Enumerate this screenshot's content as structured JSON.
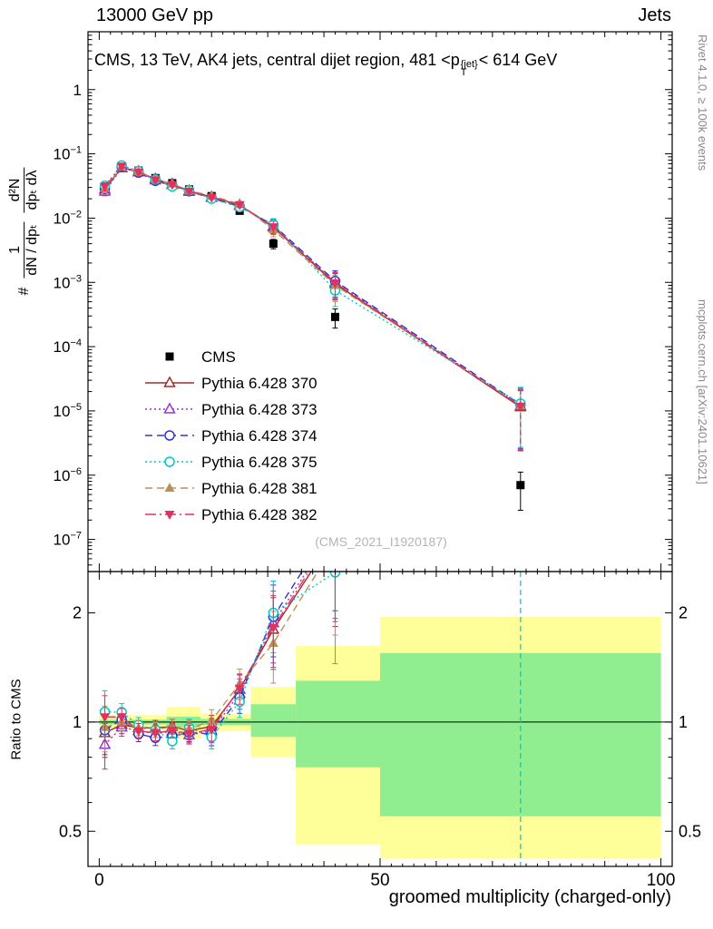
{
  "header": {
    "left": "13000 GeV pp",
    "right": "Jets"
  },
  "plot": {
    "title_prefix": "CMS, 13 TeV, AK4 jets, central dijet region, 481 <p",
    "title_sup": "{jet}",
    "title_sub": "T",
    "title_suffix": "< 614 GeV",
    "watermark": "(CMS_2021_I1920187)",
    "ylabel": {
      "prefix": "#",
      "frac1_num": "1",
      "frac1_den": "dN / dpₜ",
      "frac2_num": "d²N",
      "frac2_den": "dpₜ dλ"
    }
  },
  "side_texts": {
    "right_top": "Rivet 4.1.0, ≥ 100k events",
    "right_bottom": "mcplots.cern.ch [arXiv:2401.10621]"
  },
  "ratio": {
    "ylabel": "Ratio to CMS",
    "major_ticks": [
      0.5,
      1,
      2
    ]
  },
  "xaxis": {
    "title": "groomed multiplicity (charged-only)",
    "major_ticks": [
      0,
      50,
      100
    ]
  },
  "yaxis": {
    "tick_exponents": [
      0,
      -1,
      -2,
      -3,
      -4,
      -5,
      -6,
      -7
    ]
  },
  "chart_data": {
    "type": "line",
    "title": "CMS, 13 TeV, AK4 jets, central dijet region, 481 < pT{jet} < 614 GeV",
    "xlabel": "groomed multiplicity (charged-only)",
    "ylabel": "# 1/(dN/dpT) d²N/(dpT dλ)",
    "ratio_label": "Ratio to CMS",
    "legend_position": "inside-left",
    "grid": false,
    "xlim": [
      -2,
      102
    ],
    "ylim_log10": [
      -7.5,
      0.9
    ],
    "ratio_ylim": [
      0.4,
      2.6
    ],
    "x": [
      1,
      4,
      7,
      10,
      13,
      16,
      20,
      25,
      31,
      42,
      75
    ],
    "errfrac": [
      0.18,
      0.07,
      0.06,
      0.06,
      0.06,
      0.07,
      0.09,
      0.12,
      0.28,
      0.55,
      0.99
    ],
    "series": [
      {
        "name": "CMS",
        "color": "#000000",
        "marker": "square-filled",
        "line": "none",
        "values": [
          0.03,
          0.062,
          0.055,
          0.042,
          0.035,
          0.028,
          0.022,
          0.013,
          0.004,
          0.00029,
          7e-07
        ]
      },
      {
        "name": "Pythia 6.428 370",
        "color": "#a52a2a",
        "marker": "triangle-open",
        "line": "solid",
        "values": [
          0.028,
          0.061,
          0.053,
          0.0405,
          0.034,
          0.0265,
          0.0214,
          0.016,
          0.0072,
          0.00095,
          1.15e-05
        ]
      },
      {
        "name": "Pythia 6.428 373",
        "color": "#9933cc",
        "marker": "triangle-open",
        "line": "dotted",
        "values": [
          0.026,
          0.06,
          0.052,
          0.039,
          0.033,
          0.0258,
          0.0208,
          0.0156,
          0.0075,
          0.001,
          1.2e-05
        ]
      },
      {
        "name": "Pythia 6.428 374",
        "color": "#3333cc",
        "marker": "circle-open",
        "line": "dashed",
        "values": [
          0.0285,
          0.063,
          0.051,
          0.038,
          0.032,
          0.0262,
          0.0204,
          0.0152,
          0.0078,
          0.00105,
          1.25e-05
        ]
      },
      {
        "name": "Pythia 6.428 375",
        "color": "#00c8c8",
        "marker": "circle-open",
        "line": "dotted",
        "values": [
          0.032,
          0.066,
          0.054,
          0.04,
          0.031,
          0.027,
          0.02,
          0.0148,
          0.008,
          0.00075,
          1.3e-05
        ]
      },
      {
        "name": "Pythia 6.428 381",
        "color": "#bc8f56",
        "marker": "triangle-filled",
        "line": "dashed",
        "values": [
          0.029,
          0.062,
          0.053,
          0.04,
          0.034,
          0.0268,
          0.0222,
          0.0166,
          0.0066,
          0.0009,
          1.2e-05
        ]
      },
      {
        "name": "Pythia 6.428 382",
        "color": "#e0315f",
        "marker": "triangle-down-filled",
        "line": "dashdot",
        "values": [
          0.031,
          0.064,
          0.052,
          0.0392,
          0.0332,
          0.026,
          0.021,
          0.0161,
          0.0073,
          0.00098,
          1.18e-05
        ]
      }
    ],
    "band_colors": {
      "yellow": "#ffff99",
      "green": "#90ee90"
    },
    "bands": {
      "yellow": [
        [
          0,
          12,
          0.955,
          1.045
        ],
        [
          12,
          18,
          0.9,
          1.1
        ],
        [
          18,
          27,
          0.945,
          1.055
        ],
        [
          27,
          35,
          0.8,
          1.25
        ],
        [
          35,
          50,
          0.46,
          1.62
        ],
        [
          50,
          100,
          0.42,
          1.95
        ]
      ],
      "green": [
        [
          0,
          12,
          0.985,
          1.015
        ],
        [
          12,
          18,
          0.965,
          1.035
        ],
        [
          18,
          27,
          0.98,
          1.02
        ],
        [
          27,
          35,
          0.91,
          1.12
        ],
        [
          35,
          50,
          0.75,
          1.3
        ],
        [
          50,
          100,
          0.55,
          1.55
        ]
      ]
    }
  }
}
